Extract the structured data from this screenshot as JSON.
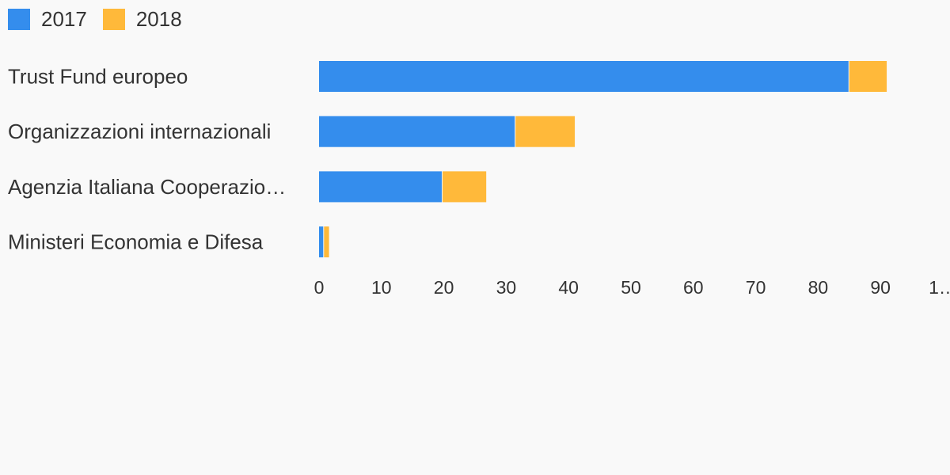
{
  "chart_data": {
    "type": "bar",
    "orientation": "horizontal",
    "stacked": true,
    "title": "",
    "xlabel": "",
    "ylabel": "",
    "categories": [
      "Trust Fund europeo",
      "Organizzazioni internazionali",
      "Agenzia Italiana Cooperazio…",
      "Ministeri Economia e Difesa"
    ],
    "series": [
      {
        "name": "2017",
        "color": "#348ded",
        "values": [
          85,
          31.5,
          19.8,
          0.8
        ]
      },
      {
        "name": "2018",
        "color": "#ffb93a",
        "values": [
          6,
          9.5,
          7,
          0.8
        ]
      }
    ],
    "xlim": [
      0,
      100
    ],
    "ticks": [
      "0",
      "10",
      "20",
      "30",
      "40",
      "50",
      "60",
      "70",
      "80",
      "90",
      "1…"
    ],
    "grid": false,
    "legend_position": "top-left"
  }
}
